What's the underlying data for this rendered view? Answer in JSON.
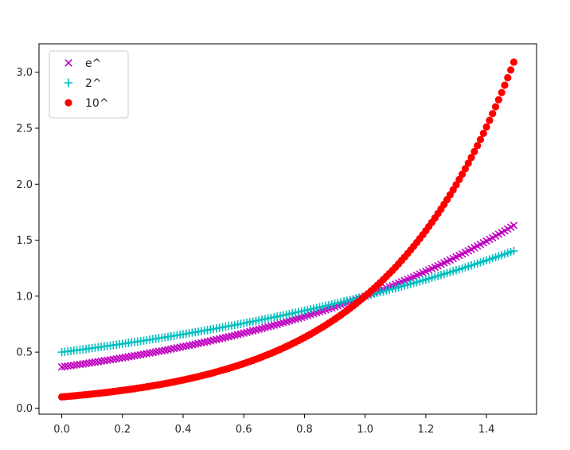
{
  "chart_data": {
    "type": "scatter",
    "title": "",
    "xlabel": "",
    "ylabel": "",
    "x": {
      "start": 0.0,
      "stop": 1.49,
      "step": 0.01
    },
    "xlim": [
      -0.075,
      1.565
    ],
    "ylim": [
      -0.054,
      3.254
    ],
    "x_ticks": [
      0.0,
      0.2,
      0.4,
      0.6,
      0.8,
      1.0,
      1.2,
      1.4
    ],
    "x_tick_labels": [
      "0.0",
      "0.2",
      "0.4",
      "0.6",
      "0.8",
      "1.0",
      "1.2",
      "1.4"
    ],
    "y_ticks": [
      0.0,
      0.5,
      1.0,
      1.5,
      2.0,
      2.5,
      3.0
    ],
    "y_tick_labels": [
      "0.0",
      "0.5",
      "1.0",
      "1.5",
      "2.0",
      "2.5",
      "3.0"
    ],
    "grid": false,
    "legend_position": "upper-left",
    "series": [
      {
        "name": "e^",
        "function": "e^(x-1)",
        "marker": "x",
        "color": "#bf00bf"
      },
      {
        "name": "2^",
        "function": "2^(x-1)",
        "marker": "+",
        "color": "#00bfbf"
      },
      {
        "name": "10^",
        "function": "10^(x-1)",
        "marker": "o",
        "color": "#ff0000"
      }
    ]
  }
}
